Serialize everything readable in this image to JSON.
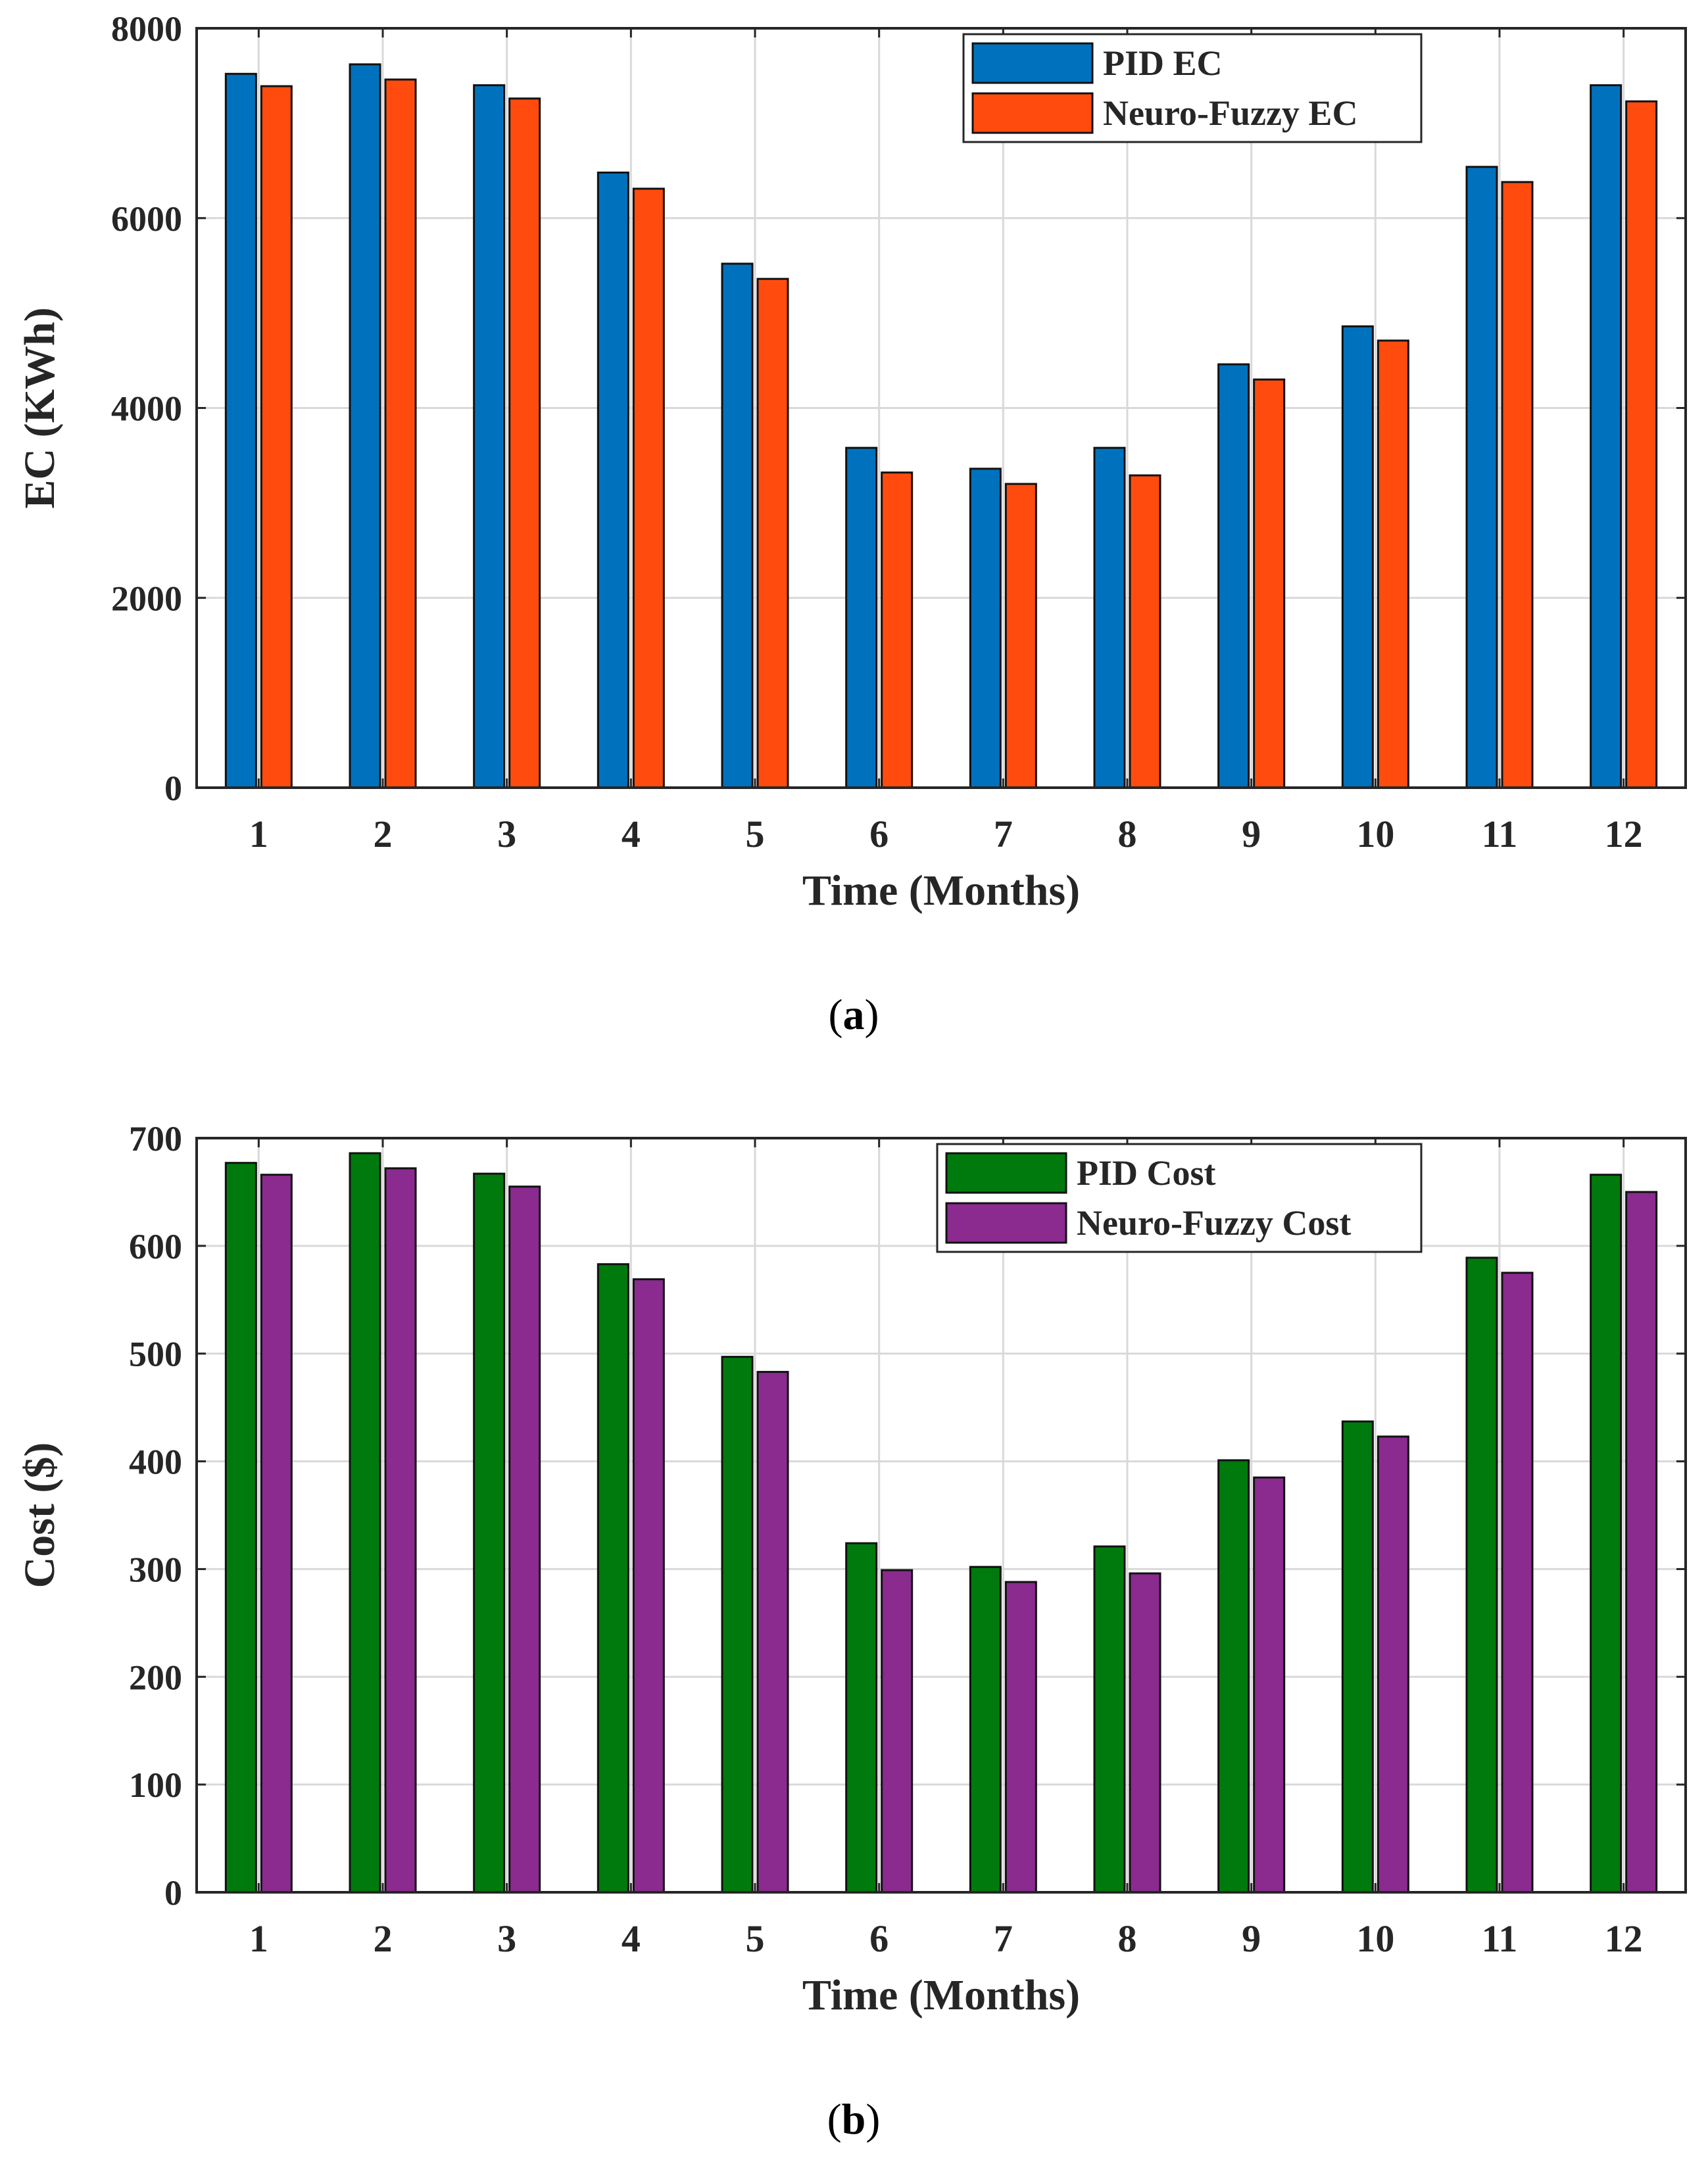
{
  "chart_data": [
    {
      "type": "bar",
      "panel_label": "a",
      "xlabel": "Time (Months)",
      "ylabel": "EC (KWh)",
      "categories": [
        "1",
        "2",
        "3",
        "4",
        "5",
        "6",
        "7",
        "8",
        "9",
        "10",
        "11",
        "12"
      ],
      "ylim": [
        0,
        8000
      ],
      "yticks": [
        "0",
        "2000",
        "4000",
        "6000",
        "8000"
      ],
      "grid": true,
      "legend_position": "top-right",
      "series": [
        {
          "name": "PID EC",
          "color": "#0072BD",
          "values": [
            7520,
            7620,
            7400,
            6480,
            5520,
            3580,
            3360,
            3580,
            4460,
            4860,
            6540,
            7400
          ]
        },
        {
          "name": "Neuro-Fuzzy EC",
          "color": "#FF4C0E",
          "values": [
            7390,
            7460,
            7260,
            6310,
            5360,
            3320,
            3200,
            3290,
            4300,
            4710,
            6380,
            7230
          ]
        }
      ]
    },
    {
      "type": "bar",
      "panel_label": "b",
      "xlabel": "Time (Months)",
      "ylabel": "Cost ($)",
      "categories": [
        "1",
        "2",
        "3",
        "4",
        "5",
        "6",
        "7",
        "8",
        "9",
        "10",
        "11",
        "12"
      ],
      "ylim": [
        0,
        700
      ],
      "yticks": [
        "0",
        "100",
        "200",
        "300",
        "400",
        "500",
        "600",
        "700"
      ],
      "grid": true,
      "legend_position": "top-right",
      "series": [
        {
          "name": "PID Cost",
          "color": "#007A0C",
          "values": [
            677,
            686,
            667,
            583,
            497,
            324,
            302,
            321,
            401,
            437,
            589,
            666
          ]
        },
        {
          "name": "Neuro-Fuzzy Cost",
          "color": "#8B2A8F",
          "values": [
            666,
            672,
            655,
            569,
            483,
            299,
            288,
            296,
            385,
            423,
            575,
            650
          ]
        }
      ]
    }
  ]
}
